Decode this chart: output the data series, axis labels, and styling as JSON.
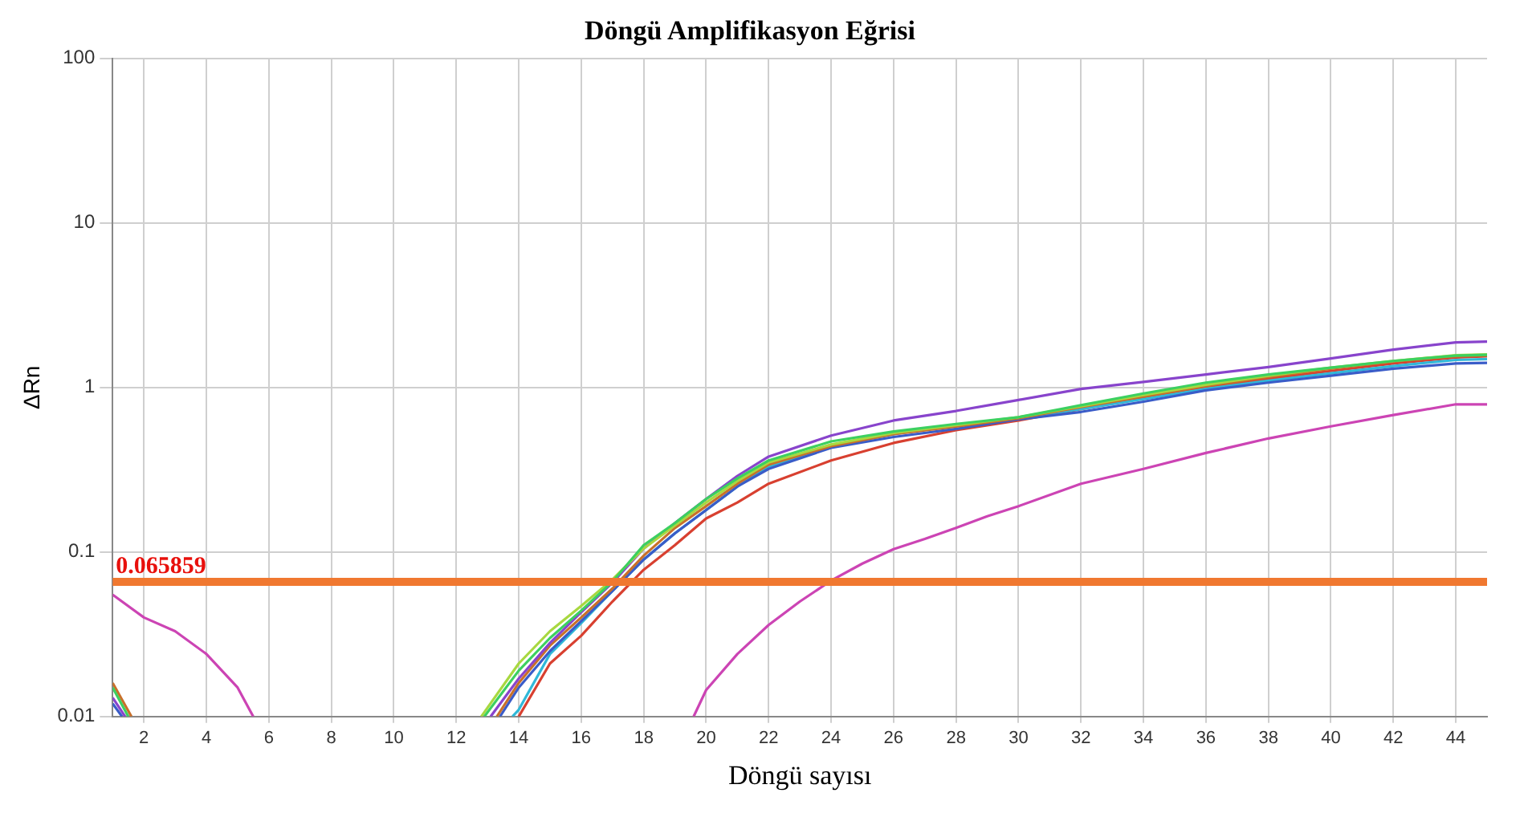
{
  "chart_data": {
    "type": "line",
    "title": "Döngü Amplifikasyon Eğrisi",
    "xlabel": "Döngü sayısı",
    "ylabel": "ΔRn",
    "log": "y",
    "grid": true,
    "legend": false,
    "marker": "none",
    "line_style": "solid",
    "xlim": [
      1,
      45
    ],
    "xticks": [
      2,
      4,
      6,
      8,
      10,
      12,
      14,
      16,
      18,
      20,
      22,
      24,
      26,
      28,
      30,
      32,
      34,
      36,
      38,
      40,
      42,
      44
    ],
    "ylim": [
      0.01,
      100
    ],
    "yticks": [
      0.01,
      0.1,
      1,
      10,
      100
    ],
    "ref_lines": [
      {
        "axis": "y",
        "value": 0.065859,
        "label": "0.065859",
        "color": "#f07830"
      }
    ],
    "series": [
      {
        "color": "#3cd060",
        "x": [
          1,
          1.5,
          7,
          12.9,
          14,
          15,
          16,
          17,
          18,
          19,
          20,
          21,
          22,
          24,
          26,
          28,
          30,
          32,
          34,
          36,
          38,
          40,
          42,
          44,
          45
        ],
        "values": [
          0.015,
          0.01,
          null,
          0.01,
          0.019,
          0.03,
          0.044,
          0.066,
          0.11,
          0.15,
          0.21,
          0.28,
          0.36,
          0.47,
          0.54,
          0.6,
          0.66,
          0.78,
          0.92,
          1.07,
          1.2,
          1.32,
          1.45,
          1.56,
          1.58
        ]
      },
      {
        "color": "#a8d840",
        "x": [
          12.8,
          14,
          15,
          16,
          17,
          18,
          19,
          20,
          21,
          22,
          24,
          26,
          28,
          30,
          32,
          34,
          36,
          38,
          40,
          42,
          44,
          45
        ],
        "values": [
          0.01,
          0.021,
          0.033,
          0.047,
          0.068,
          0.105,
          0.145,
          0.2,
          0.27,
          0.35,
          0.45,
          0.53,
          0.59,
          0.66,
          0.77,
          0.9,
          1.04,
          1.18,
          1.32,
          1.45,
          1.57,
          1.59
        ]
      },
      {
        "color": "#8844cc",
        "x": [
          1,
          1.4,
          7,
          13.1,
          14,
          15,
          16,
          17,
          18,
          19,
          20,
          21,
          22,
          24,
          26,
          28,
          30,
          32,
          34,
          36,
          38,
          40,
          42,
          44,
          45
        ],
        "values": [
          0.013,
          0.01,
          null,
          0.01,
          0.017,
          0.028,
          0.043,
          0.065,
          0.105,
          0.15,
          0.21,
          0.29,
          0.38,
          0.51,
          0.63,
          0.72,
          0.84,
          0.98,
          1.08,
          1.2,
          1.33,
          1.5,
          1.7,
          1.88,
          1.9
        ]
      },
      {
        "color": "#c8702a",
        "x": [
          1,
          1.6,
          7,
          13.3,
          14,
          15,
          16,
          17,
          18,
          19,
          20,
          21,
          22,
          24,
          26,
          28,
          30,
          32,
          34,
          36,
          38,
          40,
          42,
          44,
          45
        ],
        "values": [
          0.016,
          0.01,
          null,
          0.01,
          0.016,
          0.027,
          0.04,
          0.06,
          0.095,
          0.14,
          0.19,
          0.26,
          0.34,
          0.44,
          0.52,
          0.58,
          0.65,
          0.76,
          0.88,
          1.02,
          1.16,
          1.3,
          1.44,
          1.55,
          1.57
        ]
      },
      {
        "color": "#3a5cc8",
        "x": [
          1,
          1.3,
          7,
          13.4,
          14,
          15,
          16,
          17,
          18,
          19,
          20,
          21,
          22,
          24,
          26,
          28,
          30,
          32,
          34,
          36,
          38,
          40,
          42,
          44,
          45
        ],
        "values": [
          0.012,
          0.01,
          null,
          0.01,
          0.015,
          0.025,
          0.038,
          0.058,
          0.09,
          0.13,
          0.18,
          0.25,
          0.32,
          0.43,
          0.5,
          0.56,
          0.64,
          0.71,
          0.82,
          0.96,
          1.07,
          1.18,
          1.3,
          1.4,
          1.41
        ]
      },
      {
        "color": "#30b8d8",
        "x": [
          13.8,
          14,
          15,
          16,
          17,
          18,
          19,
          20,
          21,
          22,
          24,
          26,
          28,
          30,
          32,
          34,
          36,
          38,
          40,
          42,
          44,
          45
        ],
        "values": [
          0.01,
          0.011,
          0.024,
          0.037,
          0.058,
          0.09,
          0.13,
          0.18,
          0.25,
          0.33,
          0.44,
          0.52,
          0.59,
          0.65,
          0.74,
          0.85,
          0.98,
          1.1,
          1.22,
          1.35,
          1.47,
          1.49
        ]
      },
      {
        "color": "#d84030",
        "x": [
          14,
          15,
          16,
          17,
          18,
          19,
          20,
          21,
          22,
          24,
          26,
          28,
          30,
          32,
          34,
          36,
          38,
          40,
          42,
          44,
          45
        ],
        "values": [
          0.01,
          0.021,
          0.031,
          0.05,
          0.078,
          0.11,
          0.16,
          0.2,
          0.26,
          0.36,
          0.46,
          0.55,
          0.63,
          0.74,
          0.86,
          1.0,
          1.13,
          1.26,
          1.4,
          1.52,
          1.55
        ]
      },
      {
        "color": "#cc44b4",
        "x": [
          1,
          2,
          3,
          4,
          5,
          5.5,
          7,
          19.6,
          20,
          21,
          22,
          23,
          24,
          25,
          26,
          27,
          28,
          29,
          30,
          32,
          34,
          36,
          38,
          40,
          42,
          44,
          45
        ],
        "values": [
          0.055,
          0.04,
          0.033,
          0.024,
          0.015,
          0.01,
          null,
          0.01,
          0.0145,
          0.024,
          0.036,
          0.05,
          0.067,
          0.085,
          0.104,
          0.12,
          0.14,
          0.165,
          0.19,
          0.26,
          0.32,
          0.4,
          0.49,
          0.58,
          0.68,
          0.79,
          0.79
        ]
      }
    ]
  }
}
